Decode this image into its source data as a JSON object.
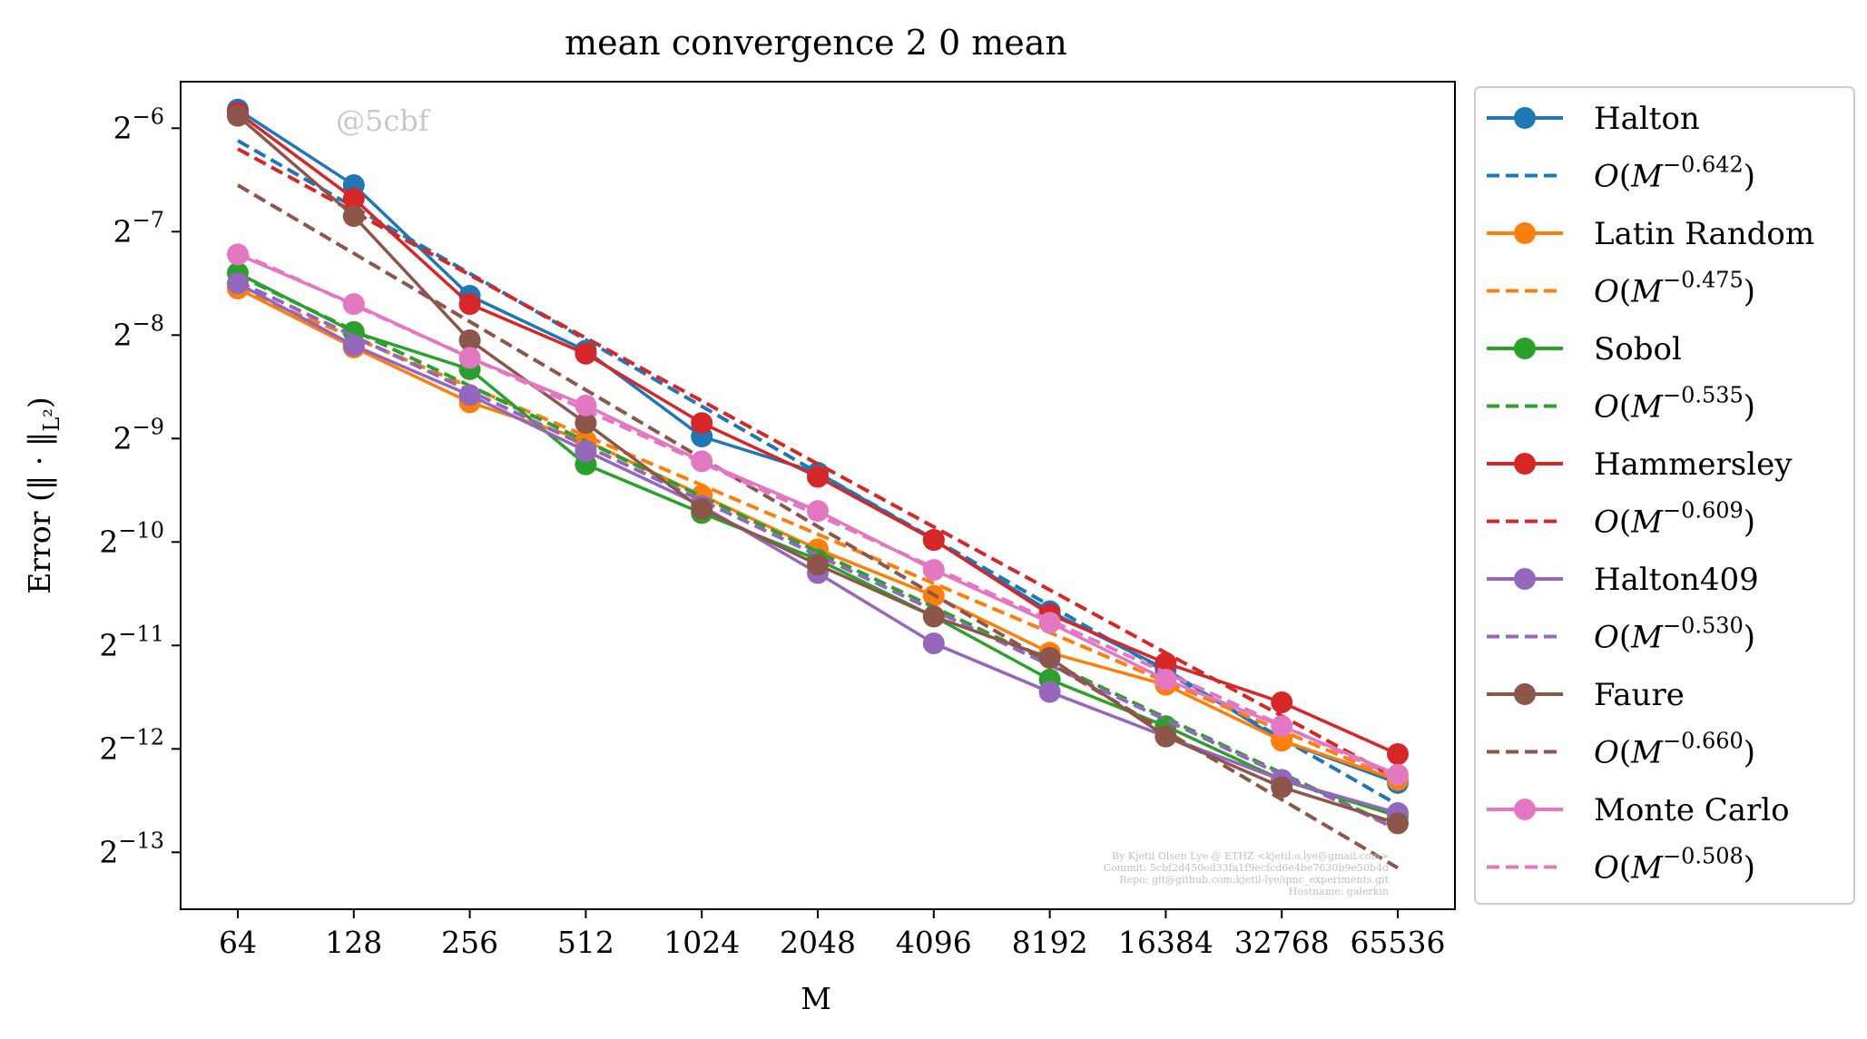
{
  "chart_data": {
    "type": "line",
    "title": "mean convergence 2 0 mean",
    "xlabel": "M",
    "ylabel": "Error (‖ · ‖L²)",
    "x_scale": "log2",
    "y_scale": "log2",
    "x": [
      64,
      128,
      256,
      512,
      1024,
      2048,
      4096,
      8192,
      16384,
      32768,
      65536
    ],
    "x_ticks": [
      "64",
      "128",
      "256",
      "512",
      "1024",
      "2048",
      "4096",
      "8192",
      "16384",
      "32768",
      "65536"
    ],
    "y_ticks": [
      {
        "base": "2",
        "exp": "−6",
        "value": -6
      },
      {
        "base": "2",
        "exp": "−7",
        "value": -7
      },
      {
        "base": "2",
        "exp": "−8",
        "value": -8
      },
      {
        "base": "2",
        "exp": "−9",
        "value": -9
      },
      {
        "base": "2",
        "exp": "−10",
        "value": -10
      },
      {
        "base": "2",
        "exp": "−11",
        "value": -11
      },
      {
        "base": "2",
        "exp": "−12",
        "value": -12
      },
      {
        "base": "2",
        "exp": "−13",
        "value": -13
      }
    ],
    "ylim_log2": [
      -13.55,
      -5.55
    ],
    "grid": false,
    "legend_position": "outside-right",
    "series": [
      {
        "name": "Halton",
        "color": "#1f77b4",
        "log2_error": [
          -5.82,
          -6.55,
          -7.62,
          -8.15,
          -8.98,
          -9.33,
          -9.98,
          -10.67,
          -11.23,
          -11.92,
          -12.33
        ],
        "fit_label_exp": "−0.642",
        "fit_start": -6.12,
        "fit_slope": -0.642
      },
      {
        "name": "Latin Random",
        "color": "#ff7f0e",
        "log2_error": [
          -7.55,
          -8.12,
          -8.65,
          -9.02,
          -9.55,
          -10.07,
          -10.52,
          -11.07,
          -11.38,
          -11.92,
          -12.3
        ],
        "fit_label_exp": "−0.475",
        "fit_start": -7.55,
        "fit_slope": -0.475
      },
      {
        "name": "Sobol",
        "color": "#2ca02c",
        "log2_error": [
          -7.4,
          -7.97,
          -8.33,
          -9.25,
          -9.72,
          -10.17,
          -10.72,
          -11.33,
          -11.78,
          -12.3,
          -12.65
        ],
        "fit_label_exp": "−0.535",
        "fit_start": -7.42,
        "fit_slope": -0.535
      },
      {
        "name": "Hammersley",
        "color": "#d62728",
        "log2_error": [
          -5.85,
          -6.68,
          -7.7,
          -8.18,
          -8.85,
          -9.37,
          -9.98,
          -10.7,
          -11.17,
          -11.55,
          -12.05
        ],
        "fit_label_exp": "−0.609",
        "fit_start": -6.2,
        "fit_slope": -0.609
      },
      {
        "name": "Halton409",
        "color": "#9467bd",
        "log2_error": [
          -7.5,
          -8.1,
          -8.58,
          -9.12,
          -9.65,
          -10.3,
          -10.98,
          -11.45,
          -11.88,
          -12.3,
          -12.62
        ],
        "fit_label_exp": "−0.530",
        "fit_start": -7.48,
        "fit_slope": -0.53
      },
      {
        "name": "Faure",
        "color": "#8c564b",
        "log2_error": [
          -5.88,
          -6.85,
          -8.05,
          -8.85,
          -9.68,
          -10.22,
          -10.72,
          -11.12,
          -11.88,
          -12.37,
          -12.72
        ],
        "fit_label_exp": "−0.660",
        "fit_start": -6.55,
        "fit_slope": -0.66
      },
      {
        "name": "Monte Carlo",
        "color": "#e377c2",
        "log2_error": [
          -7.22,
          -7.7,
          -8.22,
          -8.68,
          -9.22,
          -9.7,
          -10.27,
          -10.78,
          -11.33,
          -11.78,
          -12.25
        ],
        "fit_label_exp": "−0.508",
        "fit_start": -7.2,
        "fit_slope": -0.508
      }
    ]
  },
  "watermark": "@5cbf",
  "credit_lines": [
    "By Kjetil Olsen Lye @ ETHZ <kjetil.o.lye@gmail.com>",
    "Commit: 5cbf2d450ed33fa1f9ecfcd6e4be7630b9e50b4d",
    "Repo: git@github.com:kjetil-lye/qmc_experiments.git",
    "Hostname: galerkin"
  ]
}
